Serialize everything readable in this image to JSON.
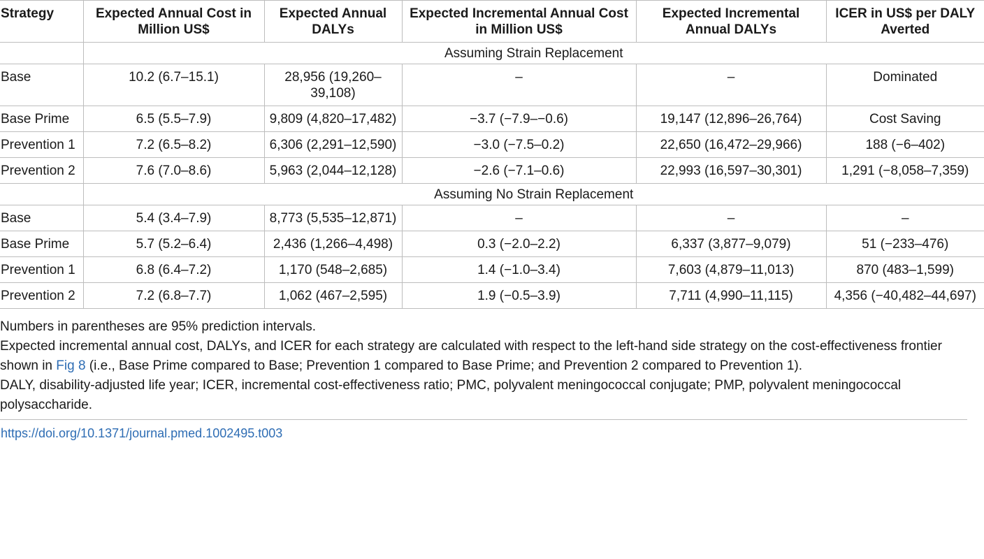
{
  "header": {
    "strategy": "Strategy",
    "cost": "Expected Annual Cost in Million US$",
    "dalys": "Expected Annual DALYs",
    "inc_cost": "Expected Incremental Annual Cost in Million US$",
    "inc_dalys": "Expected Incremental Annual DALYs",
    "icer": "ICER in US$ per DALY Averted"
  },
  "sections": [
    {
      "label": "Assuming Strain Replacement",
      "rows": [
        {
          "strategy": "Base",
          "cost": "10.2 (6.7–15.1)",
          "dalys": "28,956 (19,260–39,108)",
          "inc_cost": "–",
          "inc_dalys": "–",
          "icer": "Dominated"
        },
        {
          "strategy": "Base Prime",
          "cost": "6.5 (5.5–7.9)",
          "dalys": "9,809 (4,820–17,482)",
          "inc_cost": "−3.7 (−7.9–−0.6)",
          "inc_dalys": "19,147 (12,896–26,764)",
          "icer": "Cost Saving"
        },
        {
          "strategy": "Prevention 1",
          "cost": "7.2 (6.5–8.2)",
          "dalys": "6,306 (2,291–12,590)",
          "inc_cost": "−3.0 (−7.5–0.2)",
          "inc_dalys": "22,650 (16,472–29,966)",
          "icer": "188 (−6–402)"
        },
        {
          "strategy": "Prevention 2",
          "cost": "7.6 (7.0–8.6)",
          "dalys": "5,963 (2,044–12,128)",
          "inc_cost": "−2.6 (−7.1–0.6)",
          "inc_dalys": "22,993 (16,597–30,301)",
          "icer": "1,291 (−8,058–7,359)"
        }
      ]
    },
    {
      "label": "Assuming No Strain Replacement",
      "rows": [
        {
          "strategy": "Base",
          "cost": "5.4 (3.4–7.9)",
          "dalys": "8,773 (5,535–12,871)",
          "inc_cost": "–",
          "inc_dalys": "–",
          "icer": "–"
        },
        {
          "strategy": "Base Prime",
          "cost": "5.7 (5.2–6.4)",
          "dalys": "2,436 (1,266–4,498)",
          "inc_cost": "0.3 (−2.0–2.2)",
          "inc_dalys": "6,337 (3,877–9,079)",
          "icer": "51 (−233–476)"
        },
        {
          "strategy": "Prevention 1",
          "cost": "6.8 (6.4–7.2)",
          "dalys": "1,170 (548–2,685)",
          "inc_cost": "1.4 (−1.0–3.4)",
          "inc_dalys": "7,603 (4,879–11,013)",
          "icer": "870 (483–1,599)"
        },
        {
          "strategy": "Prevention 2",
          "cost": "7.2 (6.8–7.7)",
          "dalys": "1,062 (467–2,595)",
          "inc_cost": "1.9 (−0.5–3.9)",
          "inc_dalys": "7,711 (4,990–11,115)",
          "icer": "4,356 (−40,482–44,697)"
        }
      ]
    }
  ],
  "notes": {
    "line1": "Numbers in parentheses are 95% prediction intervals.",
    "line2_before": "Expected incremental annual cost, DALYs, and ICER for each strategy are calculated with respect to the left-hand side strategy on the cost-effectiveness frontier shown in ",
    "line2_link": "Fig 8",
    "line2_after": " (i.e., Base Prime compared to Base; Prevention 1 compared to Base Prime; and Prevention 2 compared to Prevention 1).",
    "line3": "DALY, disability-adjusted life year; ICER, incremental cost-effectiveness ratio; PMC, polyvalent meningococcal conjugate; PMP, polyvalent meningococcal polysaccharide."
  },
  "doi": "https://doi.org/10.1371/journal.pmed.1002495.t003",
  "colors": {
    "link": "#2e6db4",
    "border": "#bdbdbd"
  }
}
